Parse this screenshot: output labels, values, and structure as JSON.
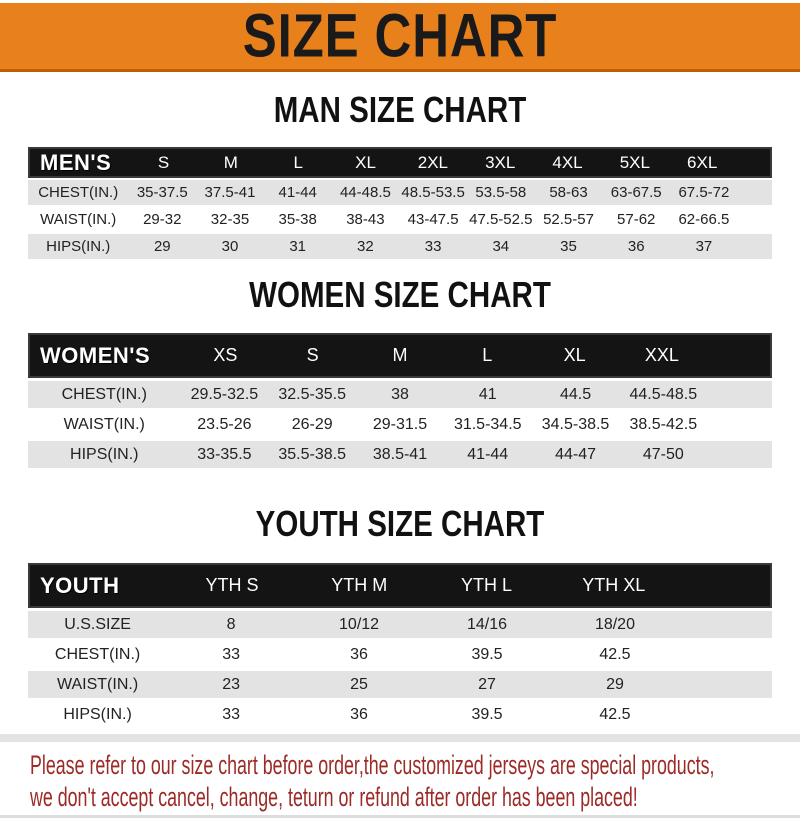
{
  "banner": {
    "title": "SIZE CHART"
  },
  "colors": {
    "banner_orange": "#E8811C",
    "banner_edge": "#BD5E08",
    "header_bar_black": "#141414",
    "row_gray": "#E3E3E3",
    "footer_red": "#9C2B28"
  },
  "sections": [
    {
      "title": "MAN SIZE CHART",
      "header_label": "MEN'S",
      "columns": [
        "S",
        "M",
        "L",
        "XL",
        "2XL",
        "3XL",
        "4XL",
        "5XL",
        "6XL"
      ],
      "rows": [
        {
          "label": "CHEST(IN.)",
          "values": [
            "35-37.5",
            "37.5-41",
            "41-44",
            "44-48.5",
            "48.5-53.5",
            "53.5-58",
            "58-63",
            "63-67.5",
            "67.5-72"
          ]
        },
        {
          "label": "WAIST(IN.)",
          "values": [
            "29-32",
            "32-35",
            "35-38",
            "38-43",
            "43-47.5",
            "47.5-52.5",
            "52.5-57",
            "57-62",
            "62-66.5"
          ]
        },
        {
          "label": "HIPS(IN.)",
          "values": [
            "29",
            "30",
            "31",
            "32",
            "33",
            "34",
            "35",
            "36",
            "37"
          ]
        }
      ]
    },
    {
      "title": "WOMEN SIZE CHART",
      "header_label": "WOMEN'S",
      "columns": [
        "XS",
        "S",
        "M",
        "L",
        "XL",
        "XXL"
      ],
      "rows": [
        {
          "label": "CHEST(IN.)",
          "values": [
            "29.5-32.5",
            "32.5-35.5",
            "38",
            "41",
            "44.5",
            "44.5-48.5"
          ]
        },
        {
          "label": "WAIST(IN.)",
          "values": [
            "23.5-26",
            "26-29",
            "29-31.5",
            "31.5-34.5",
            "34.5-38.5",
            "38.5-42.5"
          ]
        },
        {
          "label": "HIPS(IN.)",
          "values": [
            "33-35.5",
            "35.5-38.5",
            "38.5-41",
            "41-44",
            "44-47",
            "47-50"
          ]
        }
      ]
    },
    {
      "title": "YOUTH SIZE CHART",
      "header_label": "YOUTH",
      "columns": [
        "YTH S",
        "YTH M",
        "YTH L",
        "YTH XL"
      ],
      "rows": [
        {
          "label": "U.S.SIZE",
          "values": [
            "8",
            "10/12",
            "14/16",
            "18/20"
          ]
        },
        {
          "label": "CHEST(IN.)",
          "values": [
            "33",
            "36",
            "39.5",
            "42.5"
          ]
        },
        {
          "label": "WAIST(IN.)",
          "values": [
            "23",
            "25",
            "27",
            "29"
          ]
        },
        {
          "label": "HIPS(IN.)",
          "values": [
            "33",
            "36",
            "39.5",
            "42.5"
          ]
        }
      ]
    }
  ],
  "footer": {
    "line1": "Please refer to our size chart before order,the customized jerseys are special products,",
    "line2": "we don't accept cancel, change, teturn or refund after order has been placed!"
  }
}
